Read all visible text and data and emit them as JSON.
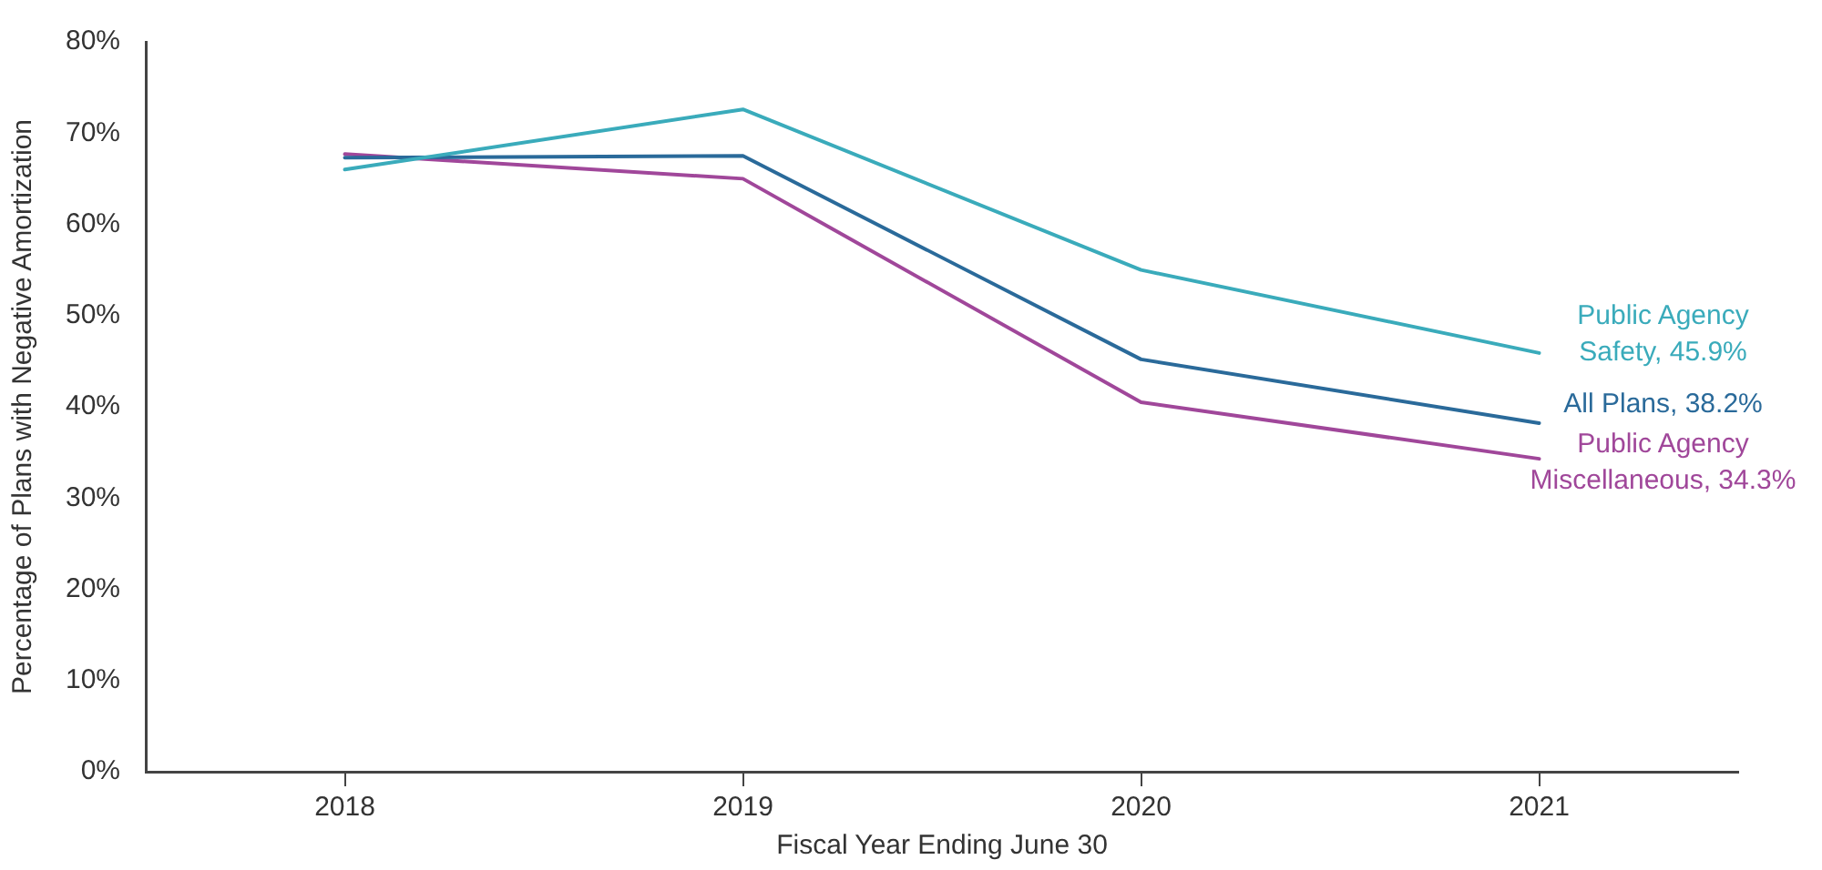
{
  "chart_data": {
    "type": "line",
    "xlabel": "Fiscal Year Ending June 30",
    "ylabel": "Percentage of Plans with Negative Amortization",
    "x": [
      2018,
      2019,
      2020,
      2021
    ],
    "xlim": [
      2017.5,
      2021.5
    ],
    "xticks": [
      2018,
      2019,
      2020,
      2021
    ],
    "ylim": [
      0,
      80
    ],
    "yticks": [
      {
        "value": 0,
        "label": "0%"
      },
      {
        "value": 10,
        "label": "10%"
      },
      {
        "value": 20,
        "label": "20%"
      },
      {
        "value": 30,
        "label": "30%"
      },
      {
        "value": 40,
        "label": "40%"
      },
      {
        "value": 50,
        "label": "50%"
      },
      {
        "value": 60,
        "label": "60%"
      },
      {
        "value": 70,
        "label": "70%"
      },
      {
        "value": 80,
        "label": "80%"
      }
    ],
    "series": [
      {
        "color": "#3aabbb",
        "values": [
          66.0,
          72.6,
          55.0,
          45.9
        ]
      },
      {
        "color": "#2a6a9a",
        "values": [
          67.3,
          67.5,
          45.2,
          38.2
        ]
      },
      {
        "color": "#a0479a",
        "values": [
          67.7,
          65.0,
          40.5,
          34.3
        ]
      }
    ],
    "annotations": [
      "Public Agency Safety, 45.9%",
      "All Plans, 38.2%",
      "Public Agency Miscellaneous, 34.3%"
    ],
    "grid": false,
    "legend": false,
    "marker": "none",
    "line_style": "solid"
  }
}
